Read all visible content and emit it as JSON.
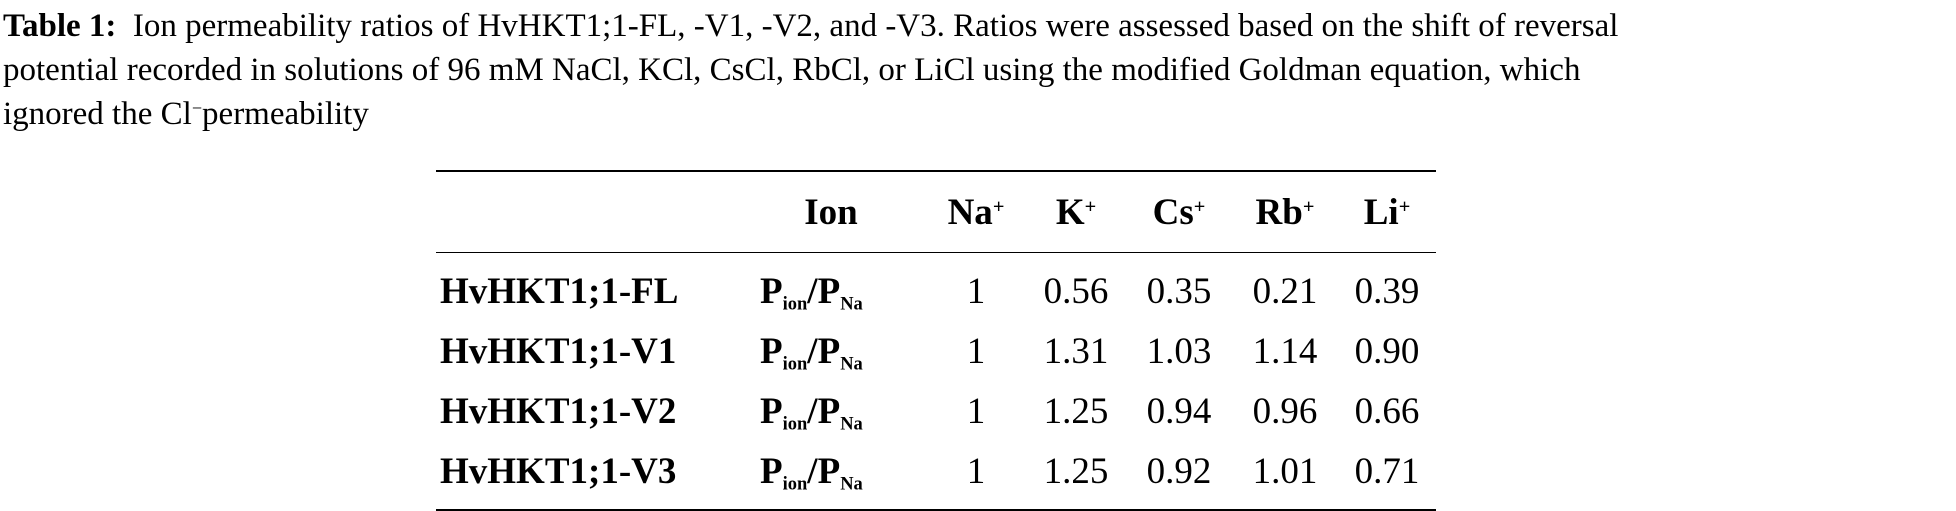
{
  "caption": {
    "label": "Table 1:",
    "line1": "Ion permeability ratios of HvHKT1;1-FL, -V1, -V2, and -V3. Ratios were assessed based on the shift of reversal",
    "line2": "potential recorded in solutions of 96 mM NaCl, KCl, CsCl, RbCl, or LiCl using the modified Goldman equation, which",
    "line3_pre": "ignored the Cl",
    "line3_sup": "−",
    "line3_post": "permeability"
  },
  "table": {
    "headers": [
      {
        "base": "",
        "charge": ""
      },
      {
        "base": "Ion",
        "charge": ""
      },
      {
        "base": "Na",
        "charge": "+"
      },
      {
        "base": "K",
        "charge": "+"
      },
      {
        "base": "Cs",
        "charge": "+"
      },
      {
        "base": "Rb",
        "charge": "+"
      },
      {
        "base": "Li",
        "charge": "+"
      }
    ],
    "ratio": {
      "p1": "P",
      "s1": "ion",
      "slash": "/",
      "p2": "P",
      "s2": "Na"
    },
    "rows": [
      {
        "variant": "HvHKT1;1-FL",
        "values": [
          "1",
          "0.56",
          "0.35",
          "0.21",
          "0.39"
        ]
      },
      {
        "variant": "HvHKT1;1-V1",
        "values": [
          "1",
          "1.31",
          "1.03",
          "1.14",
          "0.90"
        ]
      },
      {
        "variant": "HvHKT1;1-V2",
        "values": [
          "1",
          "1.25",
          "0.94",
          "0.96",
          "0.66"
        ]
      },
      {
        "variant": "HvHKT1;1-V3",
        "values": [
          "1",
          "1.25",
          "0.92",
          "1.01",
          "0.71"
        ]
      }
    ]
  }
}
